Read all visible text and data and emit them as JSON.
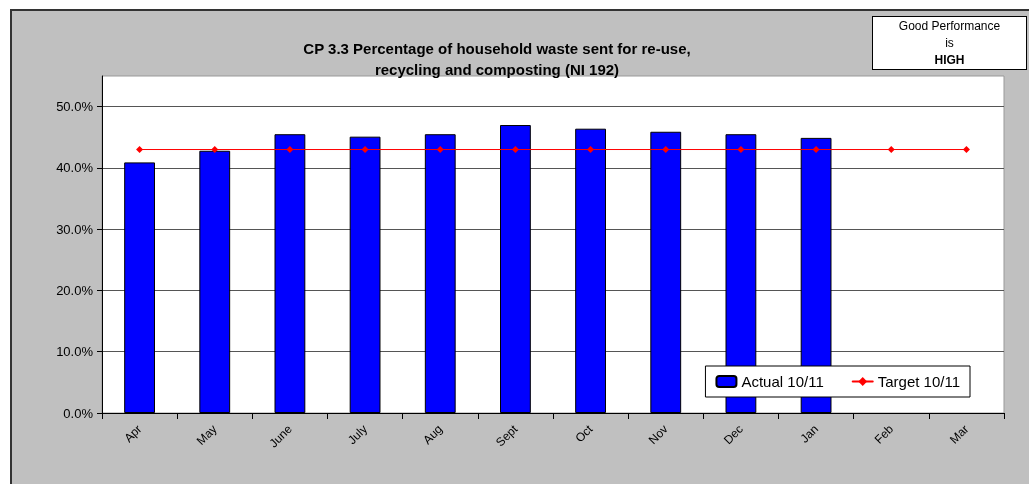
{
  "chart_data": {
    "type": "bar",
    "title": "CP 3.3 Percentage of household waste sent for re-use,\nrecycling and composting (NI 192)",
    "categories": [
      "Apr",
      "May",
      "June",
      "July",
      "Aug",
      "Sept",
      "Oct",
      "Nov",
      "Dec",
      "Jan",
      "Feb",
      "Mar"
    ],
    "series": [
      {
        "name": "Actual 10/11",
        "color": "#0000ff",
        "values": [
          40.9,
          42.8,
          45.5,
          45.1,
          45.5,
          47.0,
          46.4,
          45.9,
          45.5,
          44.9,
          null,
          null
        ]
      },
      {
        "name": "Target 10/11",
        "type": "line",
        "color": "#ff0000",
        "values": [
          43.0,
          43.0,
          43.0,
          43.0,
          43.0,
          43.0,
          43.0,
          43.0,
          43.0,
          43.0,
          43.0,
          43.0
        ]
      }
    ],
    "ylim": [
      0,
      55
    ],
    "yticks": [
      {
        "value": 0,
        "label": "0.0%"
      },
      {
        "value": 10,
        "label": "10.0%"
      },
      {
        "value": 20,
        "label": "20.0%"
      },
      {
        "value": 30,
        "label": "30.0%"
      },
      {
        "value": 40,
        "label": "40.0%"
      },
      {
        "value": 50,
        "label": "50.0%"
      }
    ],
    "grid": "y",
    "legend": "bottom right",
    "marker": "diamond",
    "line_style": "solid",
    "annotations": [
      "Good Performance\nis\nHIGH"
    ]
  }
}
